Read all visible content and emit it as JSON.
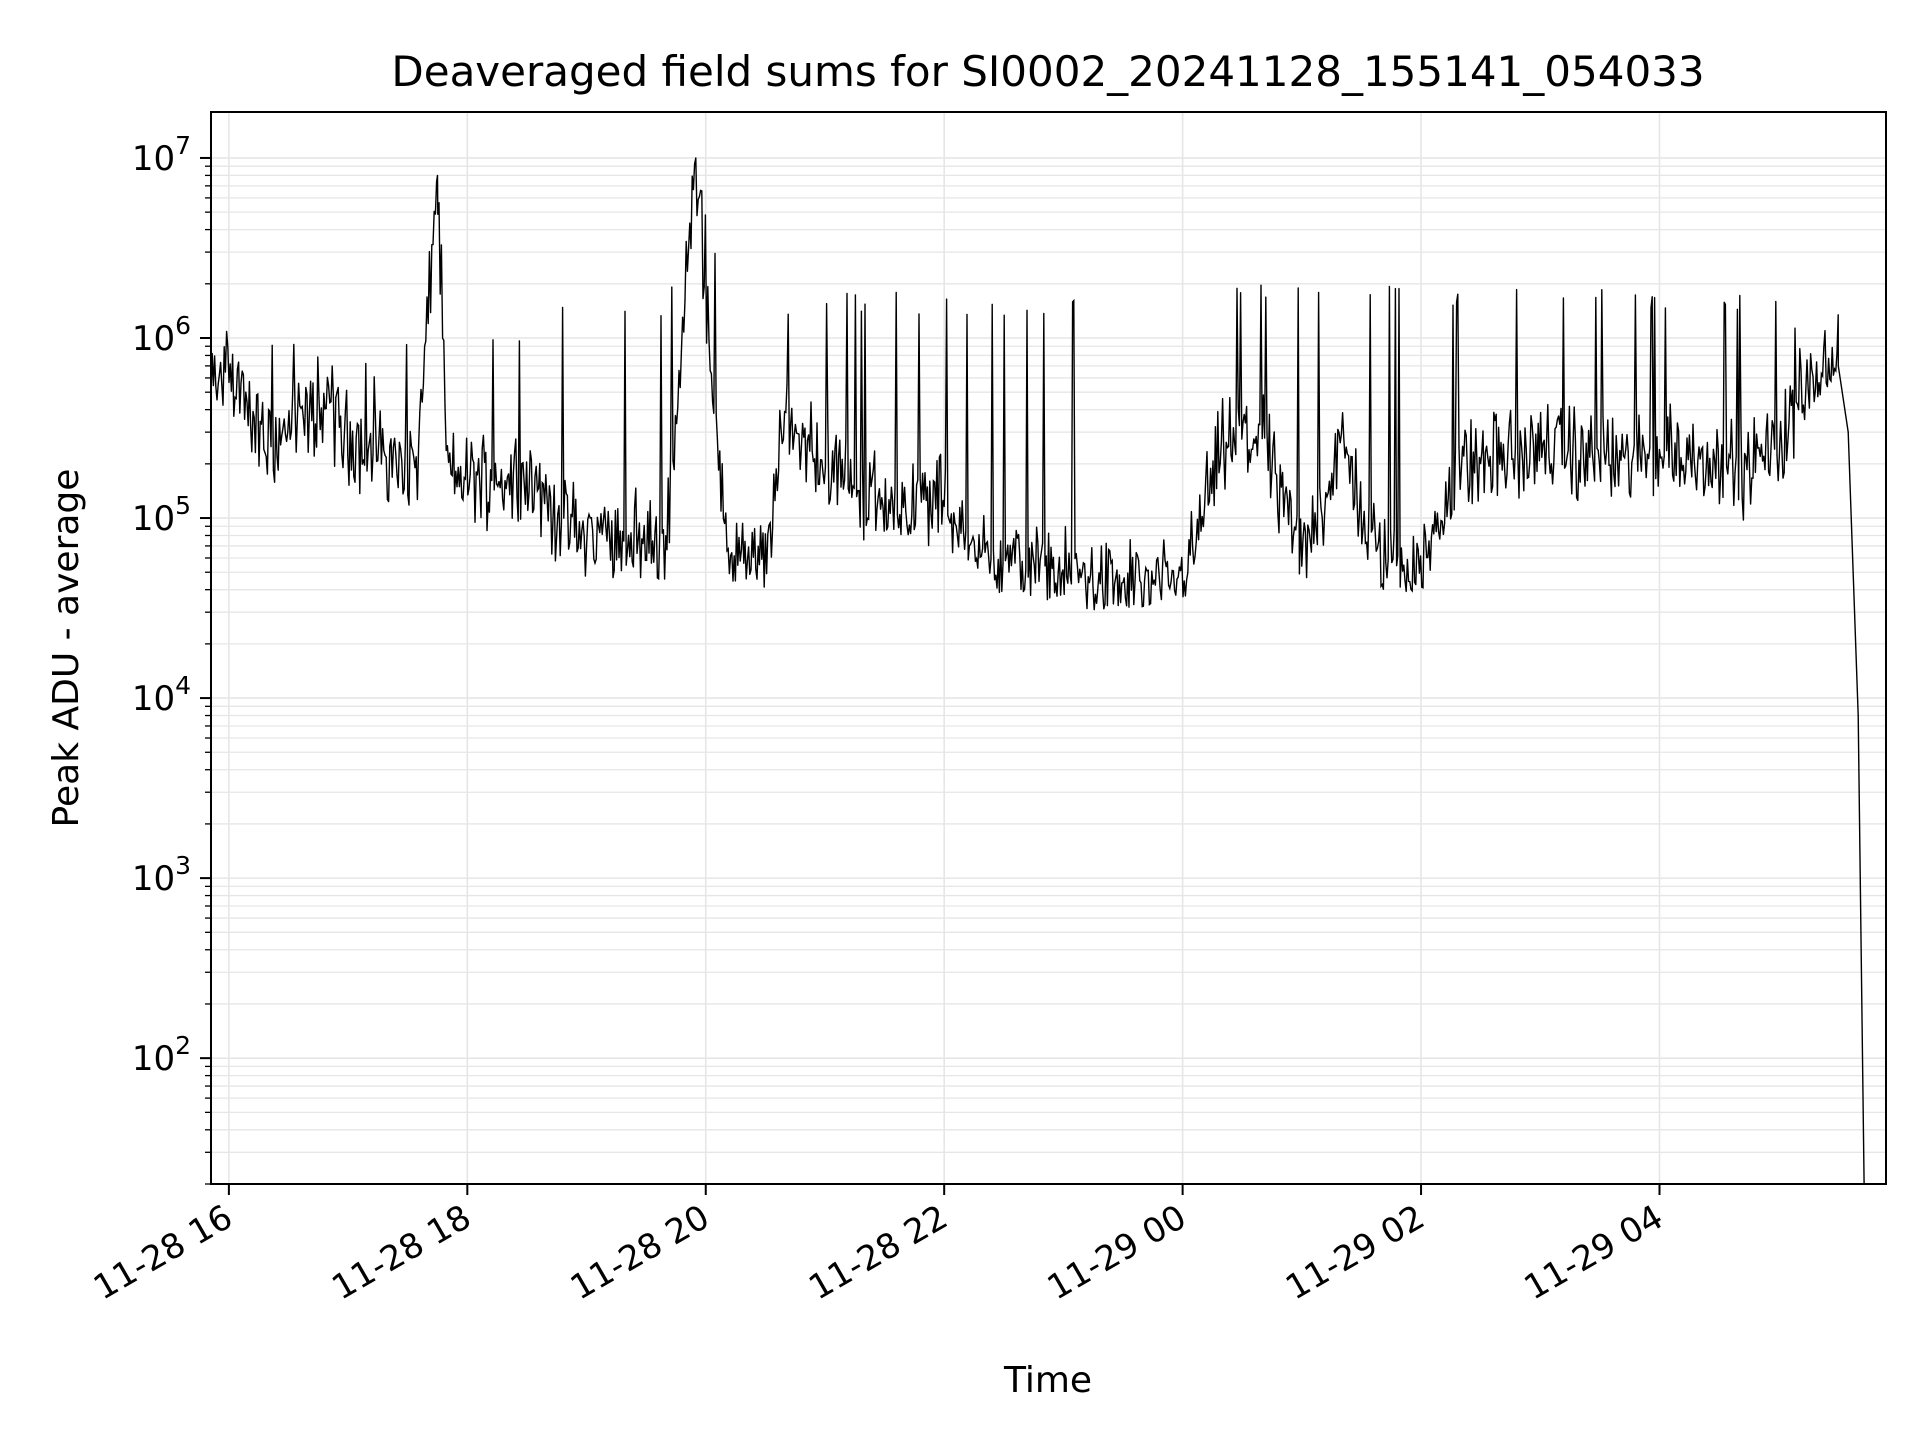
{
  "chart_data": {
    "type": "line",
    "title": "Deaveraged field sums for SI0002_20241128_155141_054033",
    "xlabel": "Time",
    "ylabel": "Peak ADU - average",
    "xscale": "time",
    "yscale": "log",
    "xlim": [
      "2024-11-28 15:51",
      "2024-11-29 05:54"
    ],
    "ylim": [
      20,
      18000000
    ],
    "grid": true,
    "xticks": [
      "2024-11-28 16:00",
      "2024-11-28 18:00",
      "2024-11-28 20:00",
      "2024-11-28 22:00",
      "2024-11-29 00:00",
      "2024-11-29 02:00",
      "2024-11-29 04:00"
    ],
    "xtick_labels": [
      "11-28 16",
      "11-28 18",
      "11-28 20",
      "11-28 22",
      "11-29 00",
      "11-29 02",
      "11-29 04"
    ],
    "ytick_labels": [
      {
        "base": "10",
        "exp": "2"
      },
      {
        "base": "10",
        "exp": "3"
      },
      {
        "base": "10",
        "exp": "4"
      },
      {
        "base": "10",
        "exp": "5"
      },
      {
        "base": "10",
        "exp": "6"
      },
      {
        "base": "10",
        "exp": "7"
      }
    ],
    "ytick_exponents": [
      2,
      3,
      4,
      5,
      6,
      7
    ],
    "line_color": "#000000",
    "grid_color": "#e6e6e6",
    "series": [
      {
        "x": [
          "2024-11-28 15:51",
          "2024-11-28 16:00",
          "2024-11-28 16:10",
          "2024-11-28 16:20",
          "2024-11-28 16:35",
          "2024-11-28 16:50",
          "2024-11-28 17:05",
          "2024-11-28 17:20",
          "2024-11-28 17:35",
          "2024-11-28 17:45",
          "2024-11-28 17:50",
          "2024-11-28 18:10",
          "2024-11-28 18:30",
          "2024-11-28 18:45",
          "2024-11-28 19:00",
          "2024-11-28 19:20",
          "2024-11-28 19:40",
          "2024-11-28 19:55",
          "2024-11-28 20:10",
          "2024-11-28 20:30",
          "2024-11-28 20:40",
          "2024-11-28 21:00",
          "2024-11-28 21:20",
          "2024-11-28 21:40",
          "2024-11-28 22:00",
          "2024-11-28 22:20",
          "2024-11-28 22:40",
          "2024-11-28 23:00",
          "2024-11-28 23:20",
          "2024-11-28 23:40",
          "2024-11-29 00:00",
          "2024-11-29 00:20",
          "2024-11-29 00:40",
          "2024-11-29 01:00",
          "2024-11-29 01:20",
          "2024-11-29 01:40",
          "2024-11-29 02:00",
          "2024-11-29 02:20",
          "2024-11-29 02:40",
          "2024-11-29 03:00",
          "2024-11-29 03:20",
          "2024-11-29 03:40",
          "2024-11-29 04:00",
          "2024-11-29 04:20",
          "2024-11-29 04:40",
          "2024-11-29 05:00",
          "2024-11-29 05:15",
          "2024-11-29 05:30",
          "2024-11-29 05:35",
          "2024-11-29 05:40",
          "2024-11-29 05:43"
        ],
        "y": [
          500000,
          700000,
          400000,
          250000,
          350000,
          400000,
          250000,
          220000,
          200000,
          8000000,
          170000,
          170000,
          180000,
          100000,
          80000,
          80000,
          70000,
          10000000,
          65000,
          55000,
          350000,
          200000,
          140000,
          120000,
          130000,
          60000,
          55000,
          50000,
          45000,
          42000,
          45000,
          250000,
          300000,
          60000,
          250000,
          55000,
          50000,
          200000,
          220000,
          250000,
          220000,
          200000,
          230000,
          220000,
          180000,
          250000,
          550000,
          700000,
          300000,
          8000,
          20
        ],
        "y_range_min": [
          400000,
          400000,
          200000,
          100000,
          150000,
          150000,
          100000,
          90000,
          80000,
          70000,
          70000,
          80000,
          90000,
          55000,
          45000,
          45000,
          45000,
          45000,
          45000,
          40000,
          150000,
          100000,
          70000,
          60000,
          60000,
          40000,
          35000,
          33000,
          30000,
          30000,
          36000,
          35000,
          36000,
          40000,
          40000,
          40000,
          38000,
          40000,
          45000,
          50000,
          55000,
          55000,
          55000,
          55000,
          50000,
          60000,
          400000,
          600000,
          300000,
          8000,
          20
        ],
        "y_range_max": [
          1300000,
          1700000,
          1100000,
          1000000,
          1100000,
          900000,
          800000,
          600000,
          1400000,
          8000000,
          1000000,
          1200000,
          1300000,
          1500000,
          1600000,
          1600000,
          1500000,
          10000000,
          1600000,
          1600000,
          1800000,
          1800000,
          1800000,
          1800000,
          1700000,
          1700000,
          1700000,
          1700000,
          1700000,
          1700000,
          1700000,
          2000000,
          2100000,
          2000000,
          2000000,
          2000000,
          1900000,
          1900000,
          2000000,
          1900000,
          1900000,
          1900000,
          1900000,
          2000000,
          1900000,
          1800000,
          900000,
          1800000,
          900000,
          8000,
          20
        ]
      }
    ]
  }
}
